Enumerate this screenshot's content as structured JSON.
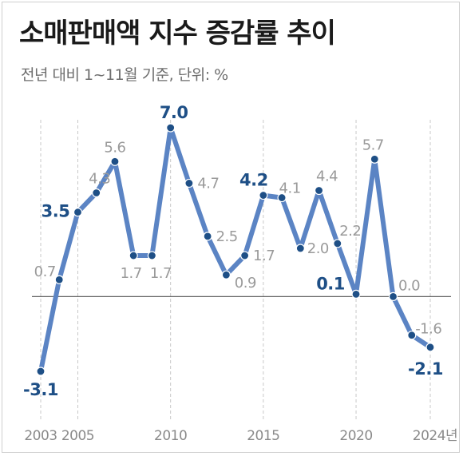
{
  "title": "소매판매액 지수 증감률 추이",
  "subtitle": "전년 대비 1~11월 기준, 단위: %",
  "colors": {
    "line": "#5b84c4",
    "point": "#1e4f86",
    "label_gray": "#9a9a9a",
    "label_emph": "#1e4f86",
    "grid": "#c8c8c8",
    "zero": "#666666"
  },
  "chart_data": {
    "type": "line",
    "title": "소매판매액 지수 증감률 추이",
    "subtitle": "전년 대비 1~11월 기준, 단위: %",
    "x": [
      2003,
      2004,
      2005,
      2006,
      2007,
      2008,
      2009,
      2010,
      2011,
      2012,
      2013,
      2014,
      2015,
      2016,
      2017,
      2018,
      2019,
      2020,
      2021,
      2022,
      2023,
      2024
    ],
    "values": [
      -3.1,
      0.7,
      3.5,
      4.3,
      5.6,
      1.7,
      1.7,
      7.0,
      4.7,
      2.5,
      0.9,
      1.7,
      4.2,
      4.1,
      2.0,
      4.4,
      2.2,
      0.1,
      5.7,
      0.0,
      -1.6,
      -2.1
    ],
    "labels": [
      "-3.1",
      "0.7",
      "3.5",
      "4.3",
      "5.6",
      "1.7",
      "1.7",
      "7.0",
      "4.7",
      "2.5",
      "0.9",
      "1.7",
      "4.2",
      "4.1",
      "2.0",
      "4.4",
      "2.2",
      "0.1",
      "5.7",
      "0.0",
      "-1.6",
      "-2.1"
    ],
    "emphasized": [
      2003,
      2005,
      2010,
      2015,
      2020,
      2024
    ],
    "x_ticks": [
      "2003",
      "2005",
      "2010",
      "2015",
      "2020",
      "2024년"
    ],
    "x_tick_years": [
      2003,
      2005,
      2010,
      2015,
      2020,
      2024
    ],
    "ylim": [
      -3.5,
      7.5
    ],
    "baseline": 0,
    "grid": "vertical dashed at tick years"
  }
}
